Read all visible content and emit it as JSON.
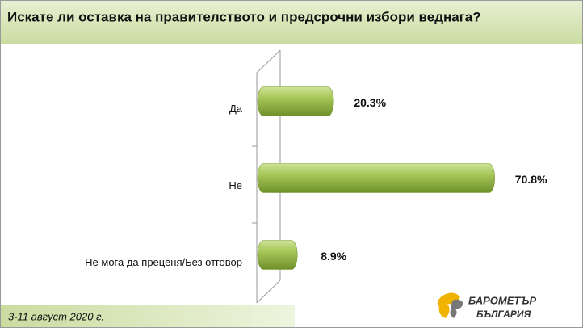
{
  "chart_data": {
    "type": "bar",
    "orientation": "horizontal",
    "title": "Искате ли оставка на правителството и предсрочни избори веднага?",
    "categories": [
      "Да",
      "Не",
      "Не мога да преценя/Без отговор"
    ],
    "values": [
      20.3,
      70.8,
      8.9
    ],
    "value_labels": [
      "20.3%",
      "70.8%",
      "8.9%"
    ],
    "color": "#9bbb59",
    "footnote": "3-11 август 2020 г.",
    "logo": [
      "БАРОМЕТЪР",
      "БЪЛГАРИЯ"
    ]
  }
}
